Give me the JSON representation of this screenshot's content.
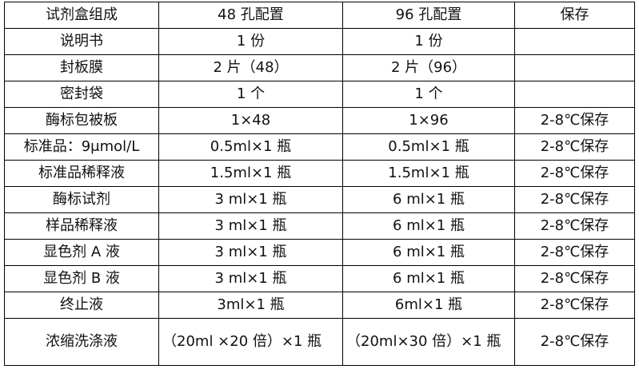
{
  "headers": [
    "试剂盒组成",
    "48 孔配置",
    "96 孔配置",
    "保存"
  ],
  "rows": [
    [
      "说明书",
      "1 份",
      "1 份",
      ""
    ],
    [
      "封板膜",
      "2 片（48）",
      "2 片（96）",
      ""
    ],
    [
      "密封袋",
      "1 个",
      "1 个",
      ""
    ],
    [
      "酶标包被板",
      "1×48",
      "1×96",
      "2-8℃保存"
    ],
    [
      "标准品：9μmol/L",
      "0.5ml×1 瓶",
      "0.5ml×1 瓶",
      "2-8℃保存"
    ],
    [
      "标准品稀释液",
      "1.5ml×1 瓶",
      "1.5ml×1 瓶",
      "2-8℃保存"
    ],
    [
      "酶标试剂",
      "3 ml×1 瓶",
      "6 ml×1 瓶",
      "2-8℃保存"
    ],
    [
      "样品稀释液",
      "3 ml×1 瓶",
      "6 ml×1 瓶",
      "2-8℃保存"
    ],
    [
      "显色剂 A 液",
      "3 ml×1 瓶",
      "6 ml×1 瓶",
      "2-8℃保存"
    ],
    [
      "显色剂 B 液",
      "3 ml×1 瓶",
      "6 ml×1 瓶",
      "2-8℃保存"
    ],
    [
      "终止液",
      "3ml×1 瓶",
      "6ml×1 瓶",
      "2-8℃保存"
    ],
    [
      "浓缩洗涤液",
      "（20ml ×20 倍）×1 瓶",
      "（20ml×30 倍）×1 瓶",
      "2-8℃保存"
    ]
  ]
}
